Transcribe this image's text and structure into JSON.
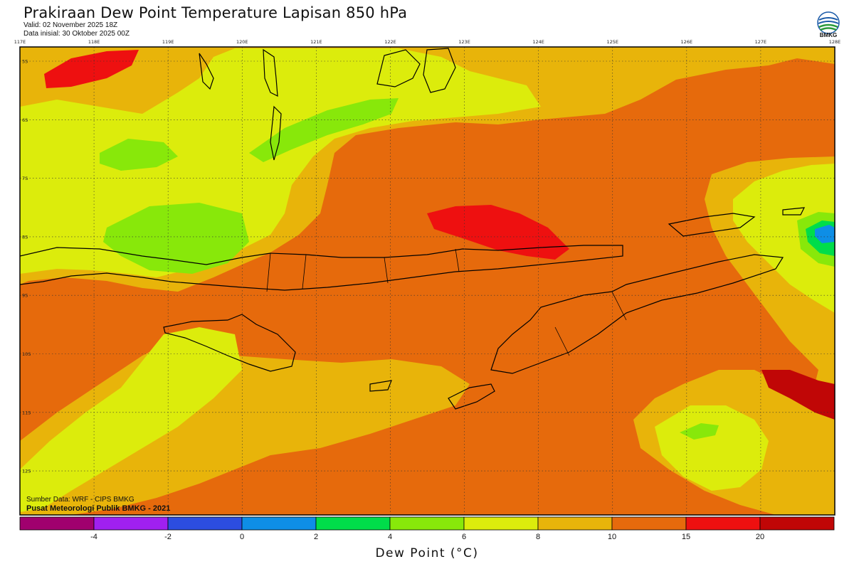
{
  "header": {
    "title": "Prakiraan Dew Point Temperature Lapisan 850 hPa",
    "valid": "Valid: 02 November 2025 18Z",
    "init": "Data inisial: 30 Oktober 2025 00Z"
  },
  "logo": {
    "text": "BMKG",
    "icon": "bmkg-logo-icon"
  },
  "axes": {
    "lon_ticks": [
      "117E",
      "118E",
      "119E",
      "120E",
      "121E",
      "122E",
      "123E",
      "124E",
      "125E",
      "126E",
      "127E",
      "128E"
    ],
    "lat_ticks": [
      "5S",
      "6S",
      "7S",
      "8S",
      "9S",
      "10S",
      "11S",
      "12S"
    ]
  },
  "credits": {
    "source": "Sumber Data: WRF - CIPS BMKG",
    "center": "Pusat Meteorologi Publik BMKG - 2021"
  },
  "colorbar": {
    "title": "Dew Point (°C)",
    "colors": [
      "#a0006e",
      "#a020f0",
      "#2c4de0",
      "#0e8ee6",
      "#00dd4a",
      "#88e80a",
      "#dcec0c",
      "#e8b40a",
      "#e66a0c",
      "#ee1010",
      "#c00606"
    ],
    "labels": [
      "-4",
      "-2",
      "0",
      "2",
      "4",
      "6",
      "8",
      "10",
      "15",
      "20"
    ]
  },
  "map_colors": {
    "ocean_base": "#e66a0c",
    "band_8_10": "#e8b40a",
    "band_6_8": "#dcec0c",
    "band_4_6": "#88e80a",
    "band_15_20": "#ee1010",
    "band_0_2": "#0e8ee6",
    "coastline": "#000000"
  }
}
